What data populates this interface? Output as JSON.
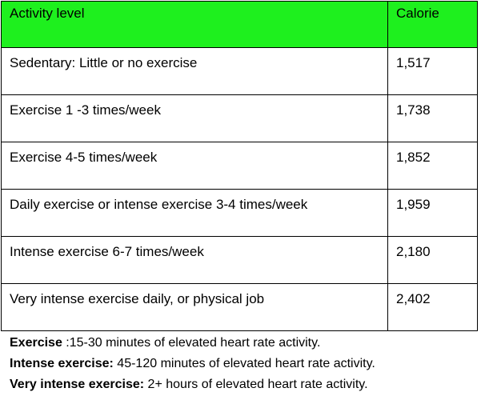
{
  "table": {
    "header": {
      "activity": "Activity level",
      "calorie": "Calorie"
    },
    "header_color": "#1EF01E",
    "rows": [
      {
        "activity": "Sedentary: Little or no exercise",
        "calorie": "1,517"
      },
      {
        "activity": "Exercise 1 -3 times/week",
        "calorie": "1,738"
      },
      {
        "activity": "Exercise 4-5 times/week",
        "calorie": "1,852"
      },
      {
        "activity": "Daily exercise or intense exercise 3-4 times/week",
        "calorie": "1,959"
      },
      {
        "activity": "Intense exercise 6-7 times/week",
        "calorie": "2,180"
      },
      {
        "activity": "Very intense exercise daily, or physical job",
        "calorie": "2,402"
      }
    ]
  },
  "notes": [
    {
      "term": "Exercise",
      "text": " :15-30 minutes of elevated heart rate activity."
    },
    {
      "term": "Intense exercise:",
      "text": " 45-120 minutes of elevated heart rate activity."
    },
    {
      "term": "Very intense exercise:",
      "text": " 2+ hours of elevated heart rate activity."
    }
  ]
}
